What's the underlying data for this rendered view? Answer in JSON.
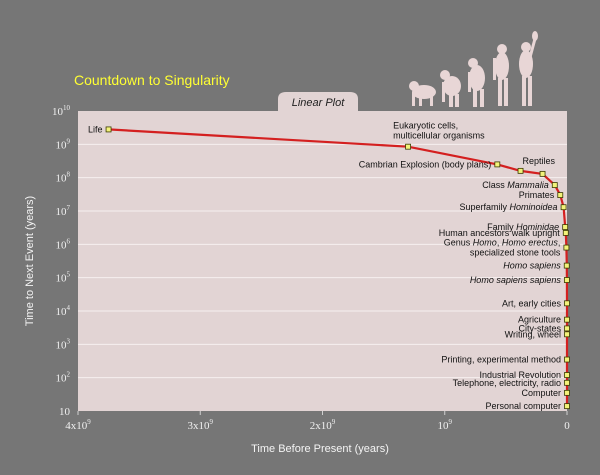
{
  "chart_data": {
    "type": "line",
    "title": "Countdown to Singularity",
    "subtitle": "Linear Plot",
    "xlabel": "Time Before Present (years)",
    "ylabel": "Time to Next Event (years)",
    "x_scale": "linear",
    "y_scale": "log",
    "xlim": [
      4000000000,
      0
    ],
    "ylim": [
      10,
      10000000000
    ],
    "x_ticks": [
      {
        "value": 4000000000,
        "base": "4x10",
        "exp": "9"
      },
      {
        "value": 3000000000,
        "base": "3x10",
        "exp": "9"
      },
      {
        "value": 2000000000,
        "base": "2x10",
        "exp": "9"
      },
      {
        "value": 1000000000,
        "base": "10",
        "exp": "9"
      },
      {
        "value": 0,
        "base": "0",
        "exp": ""
      }
    ],
    "y_ticks": [
      {
        "value": 10000000000,
        "base": "10",
        "exp": "10"
      },
      {
        "value": 1000000000,
        "base": "10",
        "exp": "9"
      },
      {
        "value": 100000000,
        "base": "10",
        "exp": "8"
      },
      {
        "value": 10000000,
        "base": "10",
        "exp": "7"
      },
      {
        "value": 1000000,
        "base": "10",
        "exp": "6"
      },
      {
        "value": 100000,
        "base": "10",
        "exp": "5"
      },
      {
        "value": 10000,
        "base": "10",
        "exp": "4"
      },
      {
        "value": 1000,
        "base": "10",
        "exp": "3"
      },
      {
        "value": 100,
        "base": "10",
        "exp": "2"
      },
      {
        "value": 10,
        "base": "10",
        "exp": ""
      }
    ],
    "grid": "horizontal",
    "colors": {
      "background": "#767676",
      "plot_area": "#e2d4d4",
      "line": "#d42020",
      "marker_fill": "#f2f27a",
      "marker_stroke": "#3a3a00",
      "title": "#ffff33",
      "grid": "#f6f0f0"
    },
    "series": [
      {
        "points": [
          {
            "x": 3750000000,
            "y": 2800000000,
            "label": [
              [
                {
                  "t": "Life"
                }
              ]
            ],
            "side": "left"
          },
          {
            "x": 1300000000,
            "y": 850000000,
            "label": [
              [
                {
                  "t": "Eukaryotic cells,"
                }
              ],
              [
                {
                  "t": "multicellular organisms"
                }
              ]
            ],
            "side": "above"
          },
          {
            "x": 570000000,
            "y": 250000000,
            "label": [
              [
                {
                  "t": "Cambrian Explosion (body plans)"
                }
              ]
            ],
            "side": "left"
          },
          {
            "x": 380000000,
            "y": 160000000,
            "label": [
              [
                {
                  "t": "Reptiles"
                }
              ]
            ],
            "side": "above-right"
          },
          {
            "x": 200000000,
            "y": 130000000,
            "label": [],
            "side": "none"
          },
          {
            "x": 100000000,
            "y": 60000000,
            "label": [
              [
                {
                  "t": "Class "
                },
                {
                  "t": "Mammalia",
                  "i": true
                }
              ]
            ],
            "side": "left"
          },
          {
            "x": 55000000,
            "y": 30000000,
            "label": [
              [
                {
                  "t": "Primates"
                }
              ]
            ],
            "side": "left"
          },
          {
            "x": 28000000,
            "y": 13000000,
            "label": [
              [
                {
                  "t": "Superfamily "
                },
                {
                  "t": "Hominoidea",
                  "i": true
                }
              ]
            ],
            "side": "left"
          },
          {
            "x": 15000000,
            "y": 3300000,
            "label": [
              [
                {
                  "t": "Family "
                },
                {
                  "t": "Hominidae",
                  "i": true
                }
              ]
            ],
            "side": "left"
          },
          {
            "x": 10000000,
            "y": 2200000,
            "label": [
              [
                {
                  "t": "Human ancestors walk upright"
                }
              ]
            ],
            "side": "left"
          },
          {
            "x": 5000000,
            "y": 800000,
            "label": [
              [
                {
                  "t": "Genus "
                },
                {
                  "t": "Homo",
                  "i": true
                },
                {
                  "t": ", "
                },
                {
                  "t": "Homo erectus",
                  "i": true
                },
                {
                  "t": ","
                }
              ],
              [
                {
                  "t": "specialized stone tools"
                }
              ]
            ],
            "side": "left"
          },
          {
            "x": 2000000,
            "y": 230000,
            "label": [
              [
                {
                  "t": "Homo sapiens",
                  "i": true
                }
              ]
            ],
            "side": "left"
          },
          {
            "x": 1000000,
            "y": 85000,
            "label": [
              [
                {
                  "t": "Homo sapiens sapiens",
                  "i": true
                }
              ]
            ],
            "side": "left"
          },
          {
            "x": 100000,
            "y": 17000,
            "label": [
              [
                {
                  "t": "Art, early cities"
                }
              ]
            ],
            "side": "left"
          },
          {
            "x": 50000,
            "y": 5500,
            "label": [
              [
                {
                  "t": "Agriculture"
                }
              ]
            ],
            "side": "left"
          },
          {
            "x": 20000,
            "y": 3000,
            "label": [
              [
                {
                  "t": "City-states"
                }
              ]
            ],
            "side": "left"
          },
          {
            "x": 10000,
            "y": 2000,
            "label": [
              [
                {
                  "t": "Writing, wheel"
                }
              ]
            ],
            "side": "left"
          },
          {
            "x": 5000,
            "y": 350,
            "label": [
              [
                {
                  "t": "Printing, experimental method"
                }
              ]
            ],
            "side": "left"
          },
          {
            "x": 1000,
            "y": 120,
            "label": [
              [
                {
                  "t": "Industrial Revolution"
                }
              ]
            ],
            "side": "left"
          },
          {
            "x": 500,
            "y": 70,
            "label": [
              [
                {
                  "t": "Telephone,  electricity, radio"
                }
              ]
            ],
            "side": "left"
          },
          {
            "x": 200,
            "y": 35,
            "label": [
              [
                {
                  "t": "Computer"
                }
              ]
            ],
            "side": "left"
          },
          {
            "x": 100,
            "y": 14,
            "label": [
              [
                {
                  "t": "Personal computer"
                }
              ]
            ],
            "side": "left"
          }
        ]
      }
    ]
  }
}
